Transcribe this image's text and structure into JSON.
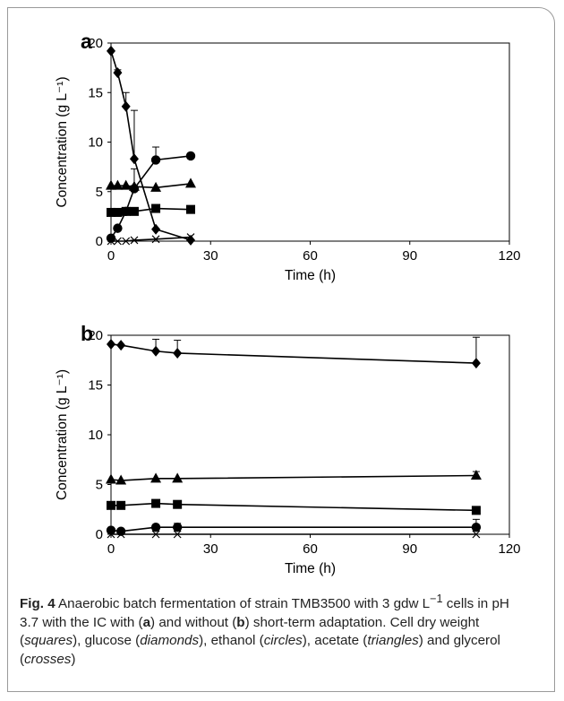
{
  "chart_data": [
    {
      "type": "line",
      "panel_label": "a",
      "xlabel": "Time (h)",
      "ylabel": "Concentration (g L⁻¹)",
      "xlim": [
        0,
        120
      ],
      "ylim": [
        0,
        20
      ],
      "xticks": [
        "0",
        "30",
        "60",
        "90",
        "120"
      ],
      "yticks": [
        "0",
        "5",
        "10",
        "15",
        "20"
      ],
      "grid": false,
      "series": [
        {
          "marker": "diamond",
          "x": [
            0,
            2,
            4.5,
            7,
            13.5,
            24
          ],
          "y": [
            19.2,
            17.0,
            13.6,
            8.3,
            1.2,
            0.1
          ],
          "err": [
            0,
            0.3,
            1.4,
            4.9,
            0,
            0
          ]
        },
        {
          "marker": "circle",
          "x": [
            0,
            2,
            4.5,
            7,
            13.5,
            24
          ],
          "y": [
            0.3,
            1.3,
            3.0,
            5.3,
            8.2,
            8.6
          ],
          "err": [
            0,
            0,
            0,
            2.0,
            1.3,
            0
          ]
        },
        {
          "marker": "triangle",
          "x": [
            0,
            2,
            4.5,
            7,
            13.5,
            24
          ],
          "y": [
            5.6,
            5.6,
            5.6,
            5.5,
            5.4,
            5.8
          ],
          "err": [
            0,
            0,
            0,
            0,
            0,
            0
          ]
        },
        {
          "marker": "square",
          "x": [
            0,
            2,
            4.5,
            7,
            13.5,
            24
          ],
          "y": [
            2.9,
            2.9,
            3.0,
            3.0,
            3.3,
            3.2
          ],
          "err": [
            0,
            0,
            0,
            0,
            0,
            0
          ]
        },
        {
          "marker": "cross",
          "x": [
            0,
            2,
            4.5,
            7,
            13.5,
            24
          ],
          "y": [
            0.0,
            0.0,
            0.0,
            0.1,
            0.2,
            0.4
          ],
          "err": [
            0,
            0,
            0,
            0,
            0,
            0
          ]
        }
      ]
    },
    {
      "type": "line",
      "panel_label": "b",
      "xlabel": "Time (h)",
      "ylabel": "Concentration (g L⁻¹)",
      "xlim": [
        0,
        120
      ],
      "ylim": [
        0,
        20
      ],
      "xticks": [
        "0",
        "30",
        "60",
        "90",
        "120"
      ],
      "yticks": [
        "0",
        "5",
        "10",
        "15",
        "20"
      ],
      "grid": false,
      "series": [
        {
          "marker": "diamond",
          "x": [
            0,
            3,
            13.5,
            20,
            110
          ],
          "y": [
            19.1,
            19.0,
            18.4,
            18.2,
            17.2
          ],
          "err": [
            0,
            0,
            1.2,
            1.3,
            2.6
          ]
        },
        {
          "marker": "triangle",
          "x": [
            0,
            3,
            13.5,
            20,
            110
          ],
          "y": [
            5.5,
            5.4,
            5.6,
            5.6,
            5.9
          ],
          "err": [
            0,
            0,
            0,
            0,
            0.4
          ]
        },
        {
          "marker": "square",
          "x": [
            0,
            3,
            13.5,
            20,
            110
          ],
          "y": [
            2.9,
            2.9,
            3.1,
            3.0,
            2.4
          ],
          "err": [
            0,
            0,
            0,
            0,
            0
          ]
        },
        {
          "marker": "circle",
          "x": [
            0,
            3,
            13.5,
            20,
            110
          ],
          "y": [
            0.4,
            0.3,
            0.7,
            0.7,
            0.7
          ],
          "err": [
            0,
            0,
            0,
            0.4,
            0.8
          ]
        },
        {
          "marker": "cross",
          "x": [
            0,
            3,
            13.5,
            20,
            110
          ],
          "y": [
            0.0,
            0.0,
            0.0,
            0.0,
            0.0
          ],
          "err": [
            0,
            0,
            0,
            0,
            0
          ]
        }
      ]
    }
  ],
  "caption": {
    "label": "Fig. 4",
    "text_1": "  Anaerobic batch fermentation of strain TMB3500 with 3 gdw L",
    "sup": "−1",
    "text_2": " cells in pH 3.7 with the IC with (",
    "panel_a": "a",
    "text_3": ") and without (",
    "panel_b": "b",
    "text_4": ") short-term adaptation. Cell dry weight (",
    "squares": "squares",
    "text_5": "), glucose (",
    "diamonds": "diamonds",
    "text_6": "), ethanol (",
    "circles": "circles",
    "text_7": "), acetate (",
    "triangles": "triangles",
    "text_8": ") and glycerol (",
    "crosses": "crosses",
    "text_9": ")"
  }
}
